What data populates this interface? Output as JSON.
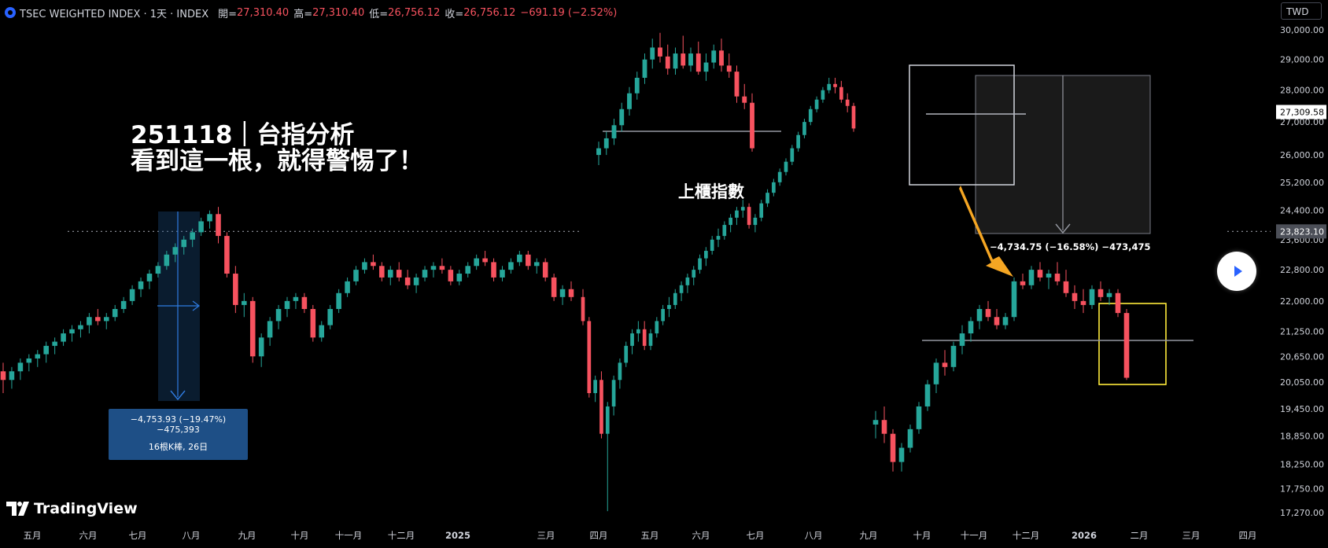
{
  "header": {
    "symbol": "TSEC WEIGHTED INDEX · 1天 · INDEX",
    "open_label": "開=",
    "open_value": "27,310.40",
    "high_label": "高=",
    "high_value": "27,310.40",
    "low_label": "低=",
    "low_value": "26,756.12",
    "close_label": "收=",
    "close_value": "26,756.12",
    "change": "−691.19 (−2.52%)"
  },
  "currency": "TWD",
  "brand": "TradingView",
  "colors": {
    "up": "#26a69a",
    "down": "#f7525f",
    "background": "#000000",
    "blue_box": "#1e4f86",
    "orange_arrow": "#f5a623",
    "yellow_box": "#ffeb3b"
  },
  "annotations": {
    "title_line1": "251118｜台指分析",
    "title_line2": "看到這一根，就得警惕了！",
    "otc_label": "上櫃指數",
    "measure_2024_line1": "−4,753.93 (−19.47%) −475,393",
    "measure_2024_line2": "16根K棒, 26日",
    "measure_2025": "−4,734.75 (−16.58%) −473,475"
  },
  "chart_data": {
    "type": "candlestick",
    "title": "TSEC WEIGHTED INDEX · 1天 · INDEX",
    "y_scale": "log",
    "ylim": [
      17000,
      30500
    ],
    "y_ticks": [
      30000,
      29000,
      28000,
      27000,
      26000,
      25200,
      24400,
      23600,
      22800,
      22000,
      21250,
      20650,
      20050,
      19450,
      18850,
      18250,
      17750,
      17270
    ],
    "y_tick_labels": [
      "30,000.00",
      "29,000.00",
      "28,000.00",
      "27,000.00",
      "26,000.00",
      "25,200.00",
      "24,400.00",
      "23,600.00",
      "22,800.00",
      "22,000.00",
      "21,250.00",
      "20,650.00",
      "20,050.00",
      "19,450.00",
      "18,850.00",
      "18,250.00",
      "17,750.00",
      "17,270.00"
    ],
    "x_labels": [
      "五月",
      "六月",
      "七月",
      "八月",
      "九月",
      "十月",
      "十一月",
      "十二月",
      "2025",
      "三月",
      "四月",
      "五月",
      "六月",
      "七月",
      "八月",
      "九月",
      "十月",
      "十一月",
      "十二月",
      "2026",
      "二月",
      "三月",
      "四月"
    ],
    "price_labels": [
      {
        "value": 27309.58,
        "text": "27,309.58",
        "style": "white"
      },
      {
        "value": 23823.1,
        "text": "23,823.10",
        "style": "gray"
      }
    ],
    "series": [
      {
        "segment": "2024",
        "values": [
          [
            20300,
            20500,
            19800,
            20100
          ],
          [
            20100,
            20400,
            19900,
            20300
          ],
          [
            20300,
            20600,
            20100,
            20500
          ],
          [
            20500,
            20700,
            20300,
            20600
          ],
          [
            20600,
            20800,
            20400,
            20700
          ],
          [
            20700,
            21000,
            20500,
            20900
          ],
          [
            20900,
            21100,
            20700,
            21000
          ],
          [
            21000,
            21300,
            20900,
            21200
          ],
          [
            21200,
            21400,
            21000,
            21300
          ],
          [
            21300,
            21500,
            21100,
            21400
          ],
          [
            21400,
            21700,
            21200,
            21600
          ],
          [
            21600,
            21800,
            21400,
            21500
          ],
          [
            21500,
            21700,
            21300,
            21600
          ],
          [
            21600,
            21900,
            21500,
            21800
          ],
          [
            21800,
            22100,
            21700,
            22000
          ],
          [
            22000,
            22400,
            21900,
            22300
          ],
          [
            22300,
            22600,
            22100,
            22500
          ],
          [
            22500,
            22800,
            22300,
            22700
          ],
          [
            22700,
            23000,
            22600,
            22900
          ],
          [
            22900,
            23300,
            22800,
            23200
          ],
          [
            23200,
            23500,
            23000,
            23400
          ],
          [
            23400,
            23700,
            23200,
            23600
          ],
          [
            23600,
            23900,
            23400,
            23800
          ],
          [
            23800,
            24200,
            23700,
            24100
          ],
          [
            24100,
            24400,
            23900,
            24300
          ],
          [
            24300,
            24500,
            23500,
            23700
          ],
          [
            23700,
            23800,
            22600,
            22700
          ],
          [
            22700,
            22900,
            21700,
            21900
          ],
          [
            21900,
            22200,
            21600,
            22000
          ],
          [
            22000,
            22100,
            20500,
            20650
          ],
          [
            20650,
            21200,
            20400,
            21100
          ],
          [
            21100,
            21600,
            20900,
            21500
          ],
          [
            21500,
            21900,
            21300,
            21800
          ],
          [
            21800,
            22100,
            21600,
            22000
          ],
          [
            22000,
            22200,
            21800,
            22100
          ],
          [
            22100,
            22200,
            21700,
            21800
          ],
          [
            21800,
            21900,
            21000,
            21100
          ],
          [
            21100,
            21500,
            21000,
            21400
          ],
          [
            21400,
            21900,
            21300,
            21800
          ],
          [
            21800,
            22300,
            21700,
            22200
          ],
          [
            22200,
            22600,
            22100,
            22500
          ],
          [
            22500,
            22900,
            22400,
            22800
          ],
          [
            22800,
            23100,
            22700,
            23000
          ],
          [
            23000,
            23200,
            22800,
            22900
          ],
          [
            22900,
            23000,
            22500,
            22600
          ],
          [
            22600,
            22900,
            22400,
            22800
          ],
          [
            22800,
            23000,
            22500,
            22600
          ],
          [
            22600,
            22800,
            22300,
            22400
          ],
          [
            22400,
            22700,
            22200,
            22600
          ],
          [
            22600,
            22900,
            22500,
            22800
          ],
          [
            22800,
            23000,
            22600,
            22900
          ],
          [
            22900,
            23100,
            22700,
            22800
          ],
          [
            22800,
            22900,
            22400,
            22500
          ],
          [
            22500,
            22800,
            22400,
            22700
          ],
          [
            22700,
            23000,
            22600,
            22900
          ],
          [
            22900,
            23200,
            22800,
            23100
          ],
          [
            23100,
            23300,
            22900,
            23000
          ],
          [
            23000,
            23100,
            22500,
            22600
          ],
          [
            22600,
            22900,
            22500,
            22800
          ],
          [
            22800,
            23100,
            22700,
            23000
          ],
          [
            23000,
            23300,
            22900,
            23200
          ],
          [
            23200,
            23300,
            22800,
            22900
          ],
          [
            22900,
            23100,
            22700,
            23000
          ],
          [
            23000,
            23100,
            22500,
            22600
          ],
          [
            22600,
            22700,
            22000,
            22100
          ],
          [
            22100,
            22400,
            21900,
            22300
          ],
          [
            22300,
            22500,
            22000,
            22100
          ]
        ]
      },
      {
        "segment": "2025",
        "values": [
          [
            22100,
            22300,
            21400,
            21500
          ],
          [
            21500,
            21600,
            19700,
            19800
          ],
          [
            19800,
            20200,
            19600,
            20100
          ],
          [
            20100,
            20300,
            18800,
            18900
          ],
          [
            18900,
            19600,
            17300,
            19500
          ],
          [
            19500,
            20200,
            19300,
            20100
          ],
          [
            20100,
            20600,
            19900,
            20500
          ],
          [
            20500,
            21000,
            20400,
            20900
          ],
          [
            20900,
            21300,
            20700,
            21200
          ],
          [
            21200,
            21500,
            21000,
            21300
          ],
          [
            21300,
            21500,
            20800,
            20900
          ],
          [
            20900,
            21300,
            20800,
            21200
          ],
          [
            21200,
            21600,
            21100,
            21500
          ],
          [
            21500,
            21900,
            21400,
            21800
          ],
          [
            21800,
            22100,
            21600,
            21900
          ],
          [
            21900,
            22300,
            21800,
            22200
          ],
          [
            22200,
            22500,
            22000,
            22400
          ],
          [
            22400,
            22700,
            22200,
            22600
          ],
          [
            22600,
            22900,
            22400,
            22800
          ],
          [
            22800,
            23200,
            22700,
            23100
          ],
          [
            23100,
            23400,
            22900,
            23300
          ],
          [
            23300,
            23700,
            23200,
            23600
          ],
          [
            23600,
            23900,
            23400,
            23700
          ],
          [
            23700,
            24100,
            23600,
            24000
          ],
          [
            24000,
            24300,
            23800,
            24200
          ],
          [
            24200,
            24500,
            24000,
            24400
          ],
          [
            24400,
            24700,
            24200,
            24500
          ],
          [
            24500,
            24600,
            23900,
            24000
          ],
          [
            24000,
            24300,
            23800,
            24200
          ],
          [
            24200,
            24700,
            24100,
            24600
          ],
          [
            24600,
            25000,
            24500,
            24900
          ],
          [
            24900,
            25300,
            24800,
            25200
          ],
          [
            25200,
            25600,
            25100,
            25500
          ],
          [
            25500,
            25900,
            25400,
            25800
          ],
          [
            25800,
            26300,
            25700,
            26200
          ],
          [
            26200,
            26700,
            26100,
            26600
          ],
          [
            26600,
            27100,
            26500,
            27000
          ],
          [
            27000,
            27500,
            26900,
            27400
          ],
          [
            27400,
            27800,
            27300,
            27700
          ],
          [
            27700,
            28100,
            27600,
            28000
          ],
          [
            28000,
            28400,
            27900,
            28200
          ],
          [
            28200,
            28400,
            27900,
            28100
          ],
          [
            28100,
            28300,
            27600,
            27700
          ],
          [
            27700,
            27900,
            27300,
            27500
          ],
          [
            27500,
            27600,
            26700,
            26800
          ]
        ]
      },
      {
        "segment": "OTC",
        "values": [
          [
            26000,
            26400,
            25700,
            26200
          ],
          [
            26200,
            26700,
            26000,
            26500
          ],
          [
            26500,
            27100,
            26300,
            26900
          ],
          [
            26900,
            27600,
            26700,
            27400
          ],
          [
            27400,
            28100,
            27200,
            27900
          ],
          [
            27900,
            28600,
            27700,
            28400
          ],
          [
            28400,
            29200,
            28200,
            29000
          ],
          [
            29000,
            29700,
            28700,
            29400
          ],
          [
            29400,
            29900,
            28900,
            29100
          ],
          [
            29100,
            29500,
            28500,
            28700
          ],
          [
            28700,
            29400,
            28500,
            29200
          ],
          [
            29200,
            29800,
            28700,
            28800
          ],
          [
            28800,
            29400,
            28600,
            29200
          ],
          [
            29200,
            29600,
            28500,
            28600
          ],
          [
            28600,
            29200,
            28300,
            28900
          ],
          [
            28900,
            29500,
            28700,
            29300
          ],
          [
            29300,
            29700,
            28600,
            28800
          ],
          [
            28800,
            29200,
            28400,
            28600
          ],
          [
            28600,
            28800,
            27600,
            27800
          ],
          [
            27800,
            28200,
            27400,
            27600
          ],
          [
            27600,
            27900,
            26100,
            26200
          ]
        ]
      },
      {
        "segment": "2026",
        "values": [
          [
            19100,
            19400,
            18800,
            19200
          ],
          [
            19200,
            19500,
            18700,
            18900
          ],
          [
            18900,
            19000,
            18100,
            18300
          ],
          [
            18300,
            18700,
            18100,
            18600
          ],
          [
            18600,
            19100,
            18500,
            19000
          ],
          [
            19000,
            19600,
            18900,
            19500
          ],
          [
            19500,
            20100,
            19400,
            20000
          ],
          [
            20000,
            20600,
            19800,
            20500
          ],
          [
            20500,
            20800,
            20200,
            20400
          ],
          [
            20400,
            21000,
            20300,
            20900
          ],
          [
            20900,
            21400,
            20700,
            21200
          ],
          [
            21200,
            21600,
            21000,
            21500
          ],
          [
            21500,
            21900,
            21300,
            21800
          ],
          [
            21800,
            22000,
            21500,
            21600
          ],
          [
            21600,
            21800,
            21300,
            21400
          ],
          [
            21400,
            21700,
            21300,
            21600
          ],
          [
            21600,
            22600,
            21500,
            22500
          ],
          [
            22500,
            22700,
            22300,
            22400
          ],
          [
            22400,
            22900,
            22300,
            22800
          ],
          [
            22800,
            23000,
            22500,
            22600
          ],
          [
            22600,
            22800,
            22300,
            22700
          ],
          [
            22700,
            23000,
            22400,
            22500
          ],
          [
            22500,
            22800,
            22100,
            22200
          ],
          [
            22200,
            22400,
            21800,
            22000
          ],
          [
            22000,
            22300,
            21700,
            21900
          ],
          [
            21900,
            22400,
            21800,
            22300
          ],
          [
            22300,
            22500,
            22000,
            22100
          ],
          [
            22100,
            22300,
            21900,
            22200
          ],
          [
            22200,
            22300,
            21600,
            21700
          ],
          [
            21700,
            21800,
            20100,
            20150
          ]
        ]
      }
    ]
  }
}
